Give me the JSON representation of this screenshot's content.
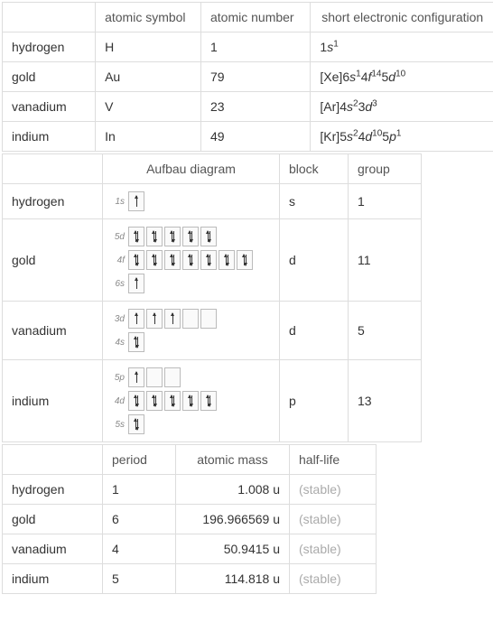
{
  "table1": {
    "headers": [
      "",
      "atomic symbol",
      "atomic number",
      "short electronic configuration"
    ],
    "rows": [
      {
        "name": "hydrogen",
        "symbol": "H",
        "number": "1",
        "config": [
          {
            "t": "1"
          },
          {
            "t": "s",
            "i": true
          },
          {
            "t": "1",
            "s": true
          }
        ]
      },
      {
        "name": "gold",
        "symbol": "Au",
        "number": "79",
        "config": [
          {
            "t": "[Xe]6"
          },
          {
            "t": "s",
            "i": true
          },
          {
            "t": "1",
            "s": true
          },
          {
            "t": "4"
          },
          {
            "t": "f",
            "i": true
          },
          {
            "t": "14",
            "s": true
          },
          {
            "t": "5"
          },
          {
            "t": "d",
            "i": true
          },
          {
            "t": "10",
            "s": true
          }
        ]
      },
      {
        "name": "vanadium",
        "symbol": "V",
        "number": "23",
        "config": [
          {
            "t": "[Ar]4"
          },
          {
            "t": "s",
            "i": true
          },
          {
            "t": "2",
            "s": true
          },
          {
            "t": "3"
          },
          {
            "t": "d",
            "i": true
          },
          {
            "t": "3",
            "s": true
          }
        ]
      },
      {
        "name": "indium",
        "symbol": "In",
        "number": "49",
        "config": [
          {
            "t": "[Kr]5"
          },
          {
            "t": "s",
            "i": true
          },
          {
            "t": "2",
            "s": true
          },
          {
            "t": "4"
          },
          {
            "t": "d",
            "i": true
          },
          {
            "t": "10",
            "s": true
          },
          {
            "t": "5"
          },
          {
            "t": "p",
            "i": true
          },
          {
            "t": "1",
            "s": true
          }
        ]
      }
    ]
  },
  "table2": {
    "headers": [
      "",
      "Aufbau diagram",
      "block",
      "group"
    ],
    "rows": [
      {
        "name": "hydrogen",
        "block": "s",
        "group": "1",
        "orbitals": [
          {
            "label": "1s",
            "boxes": [
              [
                1,
                0
              ]
            ]
          }
        ]
      },
      {
        "name": "gold",
        "block": "d",
        "group": "11",
        "orbitals": [
          {
            "label": "5d",
            "boxes": [
              [
                1,
                1
              ],
              [
                1,
                1
              ],
              [
                1,
                1
              ],
              [
                1,
                1
              ],
              [
                1,
                1
              ]
            ]
          },
          {
            "label": "4f",
            "boxes": [
              [
                1,
                1
              ],
              [
                1,
                1
              ],
              [
                1,
                1
              ],
              [
                1,
                1
              ],
              [
                1,
                1
              ],
              [
                1,
                1
              ],
              [
                1,
                1
              ]
            ]
          },
          {
            "label": "6s",
            "boxes": [
              [
                1,
                0
              ]
            ]
          }
        ]
      },
      {
        "name": "vanadium",
        "block": "d",
        "group": "5",
        "orbitals": [
          {
            "label": "3d",
            "boxes": [
              [
                1,
                0
              ],
              [
                1,
                0
              ],
              [
                1,
                0
              ],
              [
                0,
                0
              ],
              [
                0,
                0
              ]
            ]
          },
          {
            "label": "4s",
            "boxes": [
              [
                1,
                1
              ]
            ]
          }
        ]
      },
      {
        "name": "indium",
        "block": "p",
        "group": "13",
        "orbitals": [
          {
            "label": "5p",
            "boxes": [
              [
                1,
                0
              ],
              [
                0,
                0
              ],
              [
                0,
                0
              ]
            ]
          },
          {
            "label": "4d",
            "boxes": [
              [
                1,
                1
              ],
              [
                1,
                1
              ],
              [
                1,
                1
              ],
              [
                1,
                1
              ],
              [
                1,
                1
              ]
            ]
          },
          {
            "label": "5s",
            "boxes": [
              [
                1,
                1
              ]
            ]
          }
        ]
      }
    ]
  },
  "table3": {
    "headers": [
      "",
      "period",
      "atomic mass",
      "half-life"
    ],
    "rows": [
      {
        "name": "hydrogen",
        "period": "1",
        "mass": "1.008 u",
        "hl": "(stable)"
      },
      {
        "name": "gold",
        "period": "6",
        "mass": "196.966569 u",
        "hl": "(stable)"
      },
      {
        "name": "vanadium",
        "period": "4",
        "mass": "50.9415 u",
        "hl": "(stable)"
      },
      {
        "name": "indium",
        "period": "5",
        "mass": "114.818 u",
        "hl": "(stable)"
      }
    ]
  },
  "colwidths": {
    "t1": [
      90,
      115,
      120,
      215
    ],
    "t2": [
      90,
      175,
      55,
      60
    ],
    "t3": [
      90,
      60,
      105,
      75
    ]
  }
}
